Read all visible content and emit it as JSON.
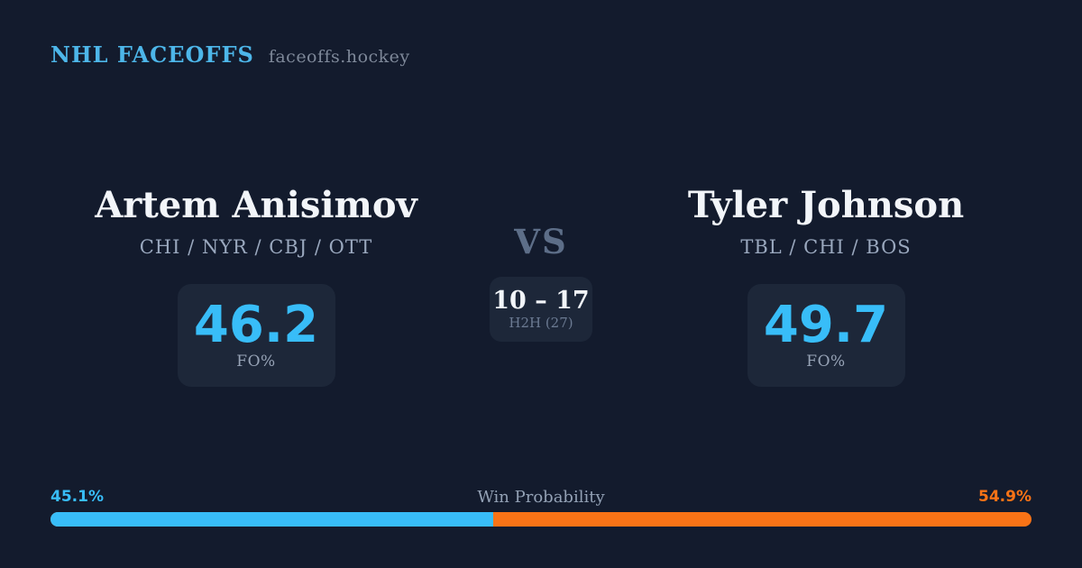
{
  "header": {
    "title": "NHL FACEOFFS",
    "site": "faceoffs.hockey"
  },
  "players": {
    "left": {
      "name": "Artem Anisimov",
      "teams": "CHI / NYR / CBJ / OTT",
      "stat_value": "46.2",
      "stat_label": "FO%"
    },
    "right": {
      "name": "Tyler Johnson",
      "teams": "TBL / CHI / BOS",
      "stat_value": "49.7",
      "stat_label": "FO%"
    }
  },
  "center": {
    "vs_label": "VS",
    "h2h_score": "10 – 17",
    "h2h_label": "H2H (27)"
  },
  "win_probability": {
    "title": "Win Probability",
    "left_pct_label": "45.1%",
    "right_pct_label": "54.9%",
    "left_value": 45.1,
    "right_value": 54.9,
    "left_color": "#38BDF8",
    "right_color": "#F97316"
  },
  "colors": {
    "background": "#131B2D",
    "panel": "#1D2739",
    "accent_blue": "#38BDF8",
    "accent_orange": "#F97316",
    "brand_blue": "#4DB6E9",
    "text_primary": "#F2F5F9",
    "text_muted": "#9AA8BE"
  }
}
